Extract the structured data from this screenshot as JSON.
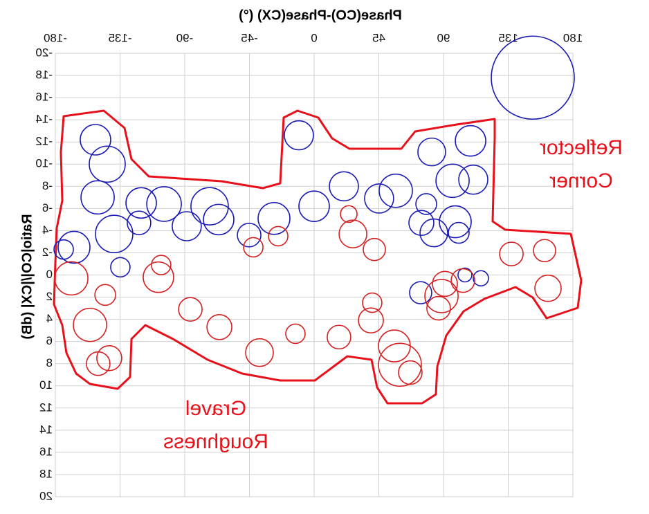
{
  "chart_data": {
    "type": "scatter",
    "title": "Phase(CO)-Phase(CX) (°)",
    "y_label": "Ratio|CO|/|CX| (dB)",
    "annotations": [
      {
        "lines": [
          "Reflector",
          "Corner"
        ],
        "color": "#e8101a"
      },
      {
        "lines": [
          "Gravel",
          "Roughness"
        ],
        "color": "#e8101a"
      }
    ],
    "xlim": [
      -180,
      180
    ],
    "xticks": [
      -180,
      -135,
      -90,
      -45,
      0,
      45,
      90,
      135,
      180
    ],
    "ylim": [
      -20,
      20
    ],
    "yticks": [
      -20,
      -18,
      -16,
      -14,
      -12,
      -10,
      -8,
      -6,
      -4,
      -2,
      0,
      2,
      4,
      6,
      8,
      10,
      12,
      14,
      16,
      18,
      20
    ],
    "y_inverted": true,
    "mirrored": true,
    "grid": true,
    "series": [
      {
        "color": "#1a1ab4",
        "x": [
          -152.1,
          -143.9,
          -150.6,
          -139.1,
          -121.8,
          -120.3,
          -104.4,
          -88.6,
          -72.7,
          -66.4,
          -45.2,
          -27.9,
          0,
          -10.6,
          20.7,
          45.2,
          56.8,
          81.8,
          78,
          74.6,
          83.3,
          100.6,
          98.2,
          96.3,
          108.8,
          110.7,
          -167,
          -174.2,
          -134.8,
          74.1,
          104.9,
          116,
          152.1
        ],
        "values": [
          -12.2,
          -10.0,
          -7.0,
          -3.7,
          -4.7,
          -6.5,
          -6.4,
          -4.4,
          -6.2,
          -5.0,
          -3.6,
          -5.1,
          -6.2,
          -12.6,
          -8.0,
          -6.9,
          -7.6,
          -11.1,
          -6.4,
          -4.7,
          -3.8,
          -3.8,
          -4.8,
          -8.5,
          -12.1,
          -8.6,
          -2.5,
          -2.3,
          -0.7,
          1.6,
          0,
          0.3,
          -17.8
        ],
        "sizes": [
          22,
          26,
          24,
          27,
          17,
          22,
          25,
          21,
          27,
          22,
          17,
          23,
          22,
          21,
          21,
          21,
          24,
          20,
          15,
          18,
          20,
          15,
          23,
          24,
          22,
          21,
          23,
          14,
          14,
          16,
          10,
          11,
          60
        ]
      },
      {
        "color": "#d42020",
        "x": [
          -106.4,
          -108.3,
          -168.9,
          -145.3,
          -155.9,
          -150.2,
          -142.5,
          -86.1,
          -65.9,
          -42.3,
          -38,
          -25,
          -13,
          17.3,
          24.1,
          27,
          41.9,
          40.4,
          39.5,
          55.8,
          66.9,
          59.7,
          86.6,
          91,
          103.5,
          88.6,
          137.2,
          160.3,
          162.7
        ],
        "values": [
          -0.9,
          0.2,
          0.3,
          1.8,
          4.5,
          8.0,
          7.5,
          3.1,
          4.7,
          -2.5,
          7.0,
          -3.5,
          5.3,
          5.6,
          -5.5,
          -3.7,
          -2.3,
          2.5,
          4.1,
          6.4,
          8.8,
          8.1,
          3.0,
          0.8,
          0.5,
          1.9,
          -1.9,
          -2.2,
          1.2
        ],
        "sizes": [
          14,
          22,
          24,
          15,
          24,
          17,
          18,
          17,
          18,
          14,
          20,
          14,
          14,
          17,
          12,
          20,
          16,
          14,
          18,
          23,
          17,
          31,
          17,
          18,
          17,
          24,
          17,
          16,
          19
        ]
      }
    ]
  }
}
